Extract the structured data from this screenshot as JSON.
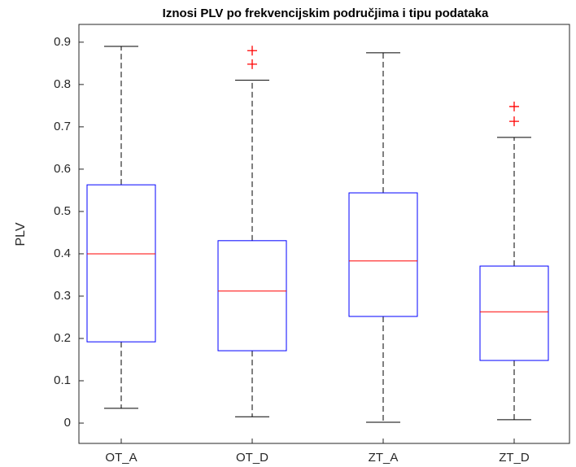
{
  "chart_data": {
    "type": "box",
    "title": "Iznosi PLV po frekvencijskim područjima i tipu podataka",
    "ylabel": "PLV",
    "categories": [
      "OT_A",
      "OT_D",
      "ZT_A",
      "ZT_D"
    ],
    "whisker_low": [
      0.035,
      0.015,
      0.002,
      0.008
    ],
    "q1": [
      0.192,
      0.171,
      0.252,
      0.148
    ],
    "median": [
      0.4,
      0.312,
      0.383,
      0.263
    ],
    "q3": [
      0.563,
      0.431,
      0.544,
      0.371
    ],
    "whisker_high": [
      0.89,
      0.81,
      0.875,
      0.675
    ],
    "outliers": [
      [],
      [
        0.88,
        0.848
      ],
      [],
      [
        0.748,
        0.713
      ]
    ],
    "box_color": "#0000ff",
    "median_color": "#ff0000",
    "whisker_color": "#000000",
    "outlier_color": "#ff0000",
    "ylim": [
      -0.048,
      0.942
    ],
    "yticks": [
      0,
      0.1,
      0.2,
      0.3,
      0.4,
      0.5,
      0.6,
      0.7,
      0.8,
      0.9
    ]
  }
}
